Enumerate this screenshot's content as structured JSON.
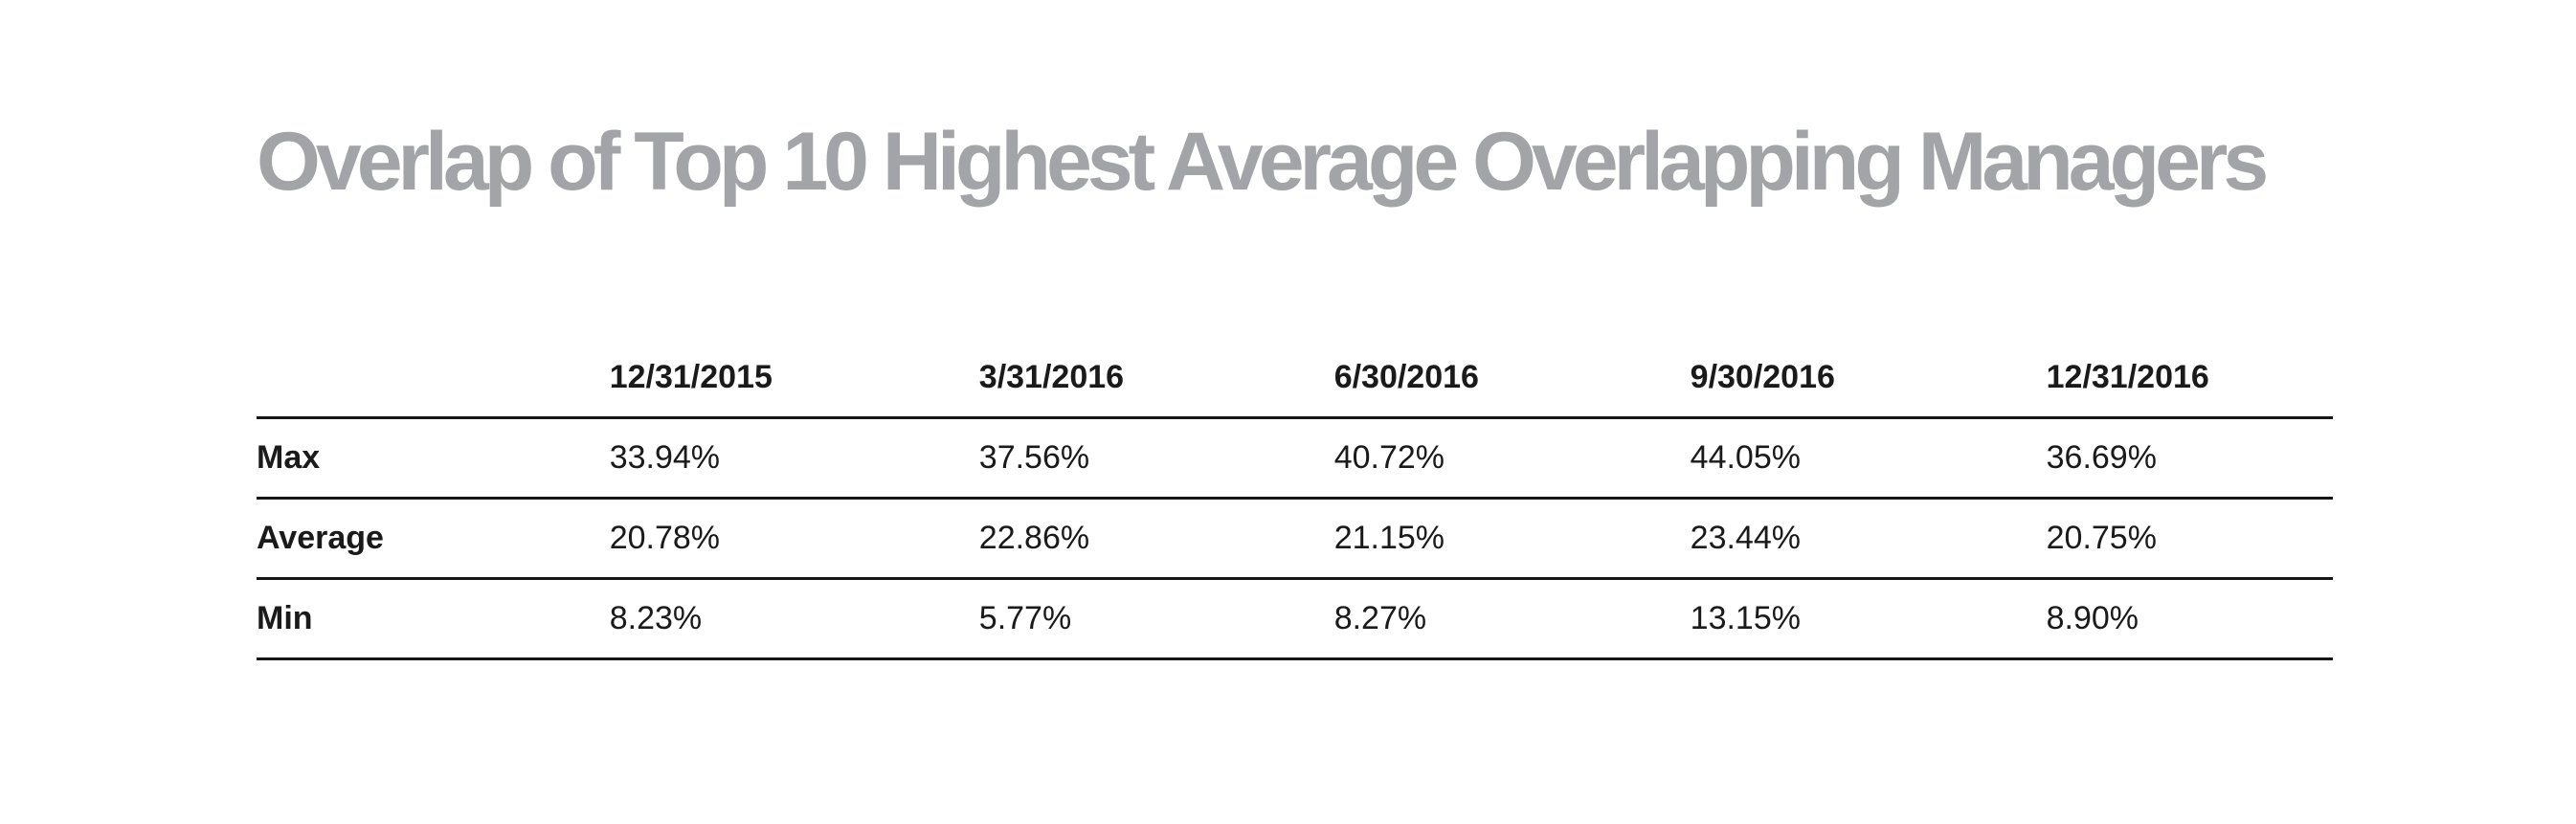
{
  "title": "Overlap of Top 10 Highest Average Overlapping Managers",
  "colors": {
    "title_gray": "#a2a4a7",
    "text_black": "#1a1a1a",
    "rule_line": "#161616",
    "background": "#ffffff"
  },
  "chart_data": {
    "type": "table",
    "title": "Overlap of Top 10 Highest Average Overlapping Managers",
    "columns": [
      "",
      "12/31/2015",
      "3/31/2016",
      "6/30/2016",
      "9/30/2016",
      "12/31/2016"
    ],
    "rows": [
      {
        "label": "Max",
        "values": [
          "33.94%",
          "37.56%",
          "40.72%",
          "44.05%",
          "36.69%"
        ]
      },
      {
        "label": "Average",
        "values": [
          "20.78%",
          "22.86%",
          "21.15%",
          "23.44%",
          "20.75%"
        ]
      },
      {
        "label": "Min",
        "values": [
          "8.23%",
          "5.77%",
          "8.27%",
          "13.15%",
          "8.90%"
        ]
      }
    ],
    "layout": {
      "grid": "horizontal-rules-only",
      "column_alignment": "left",
      "header_style": "bold",
      "row_label_style": "bold"
    }
  }
}
